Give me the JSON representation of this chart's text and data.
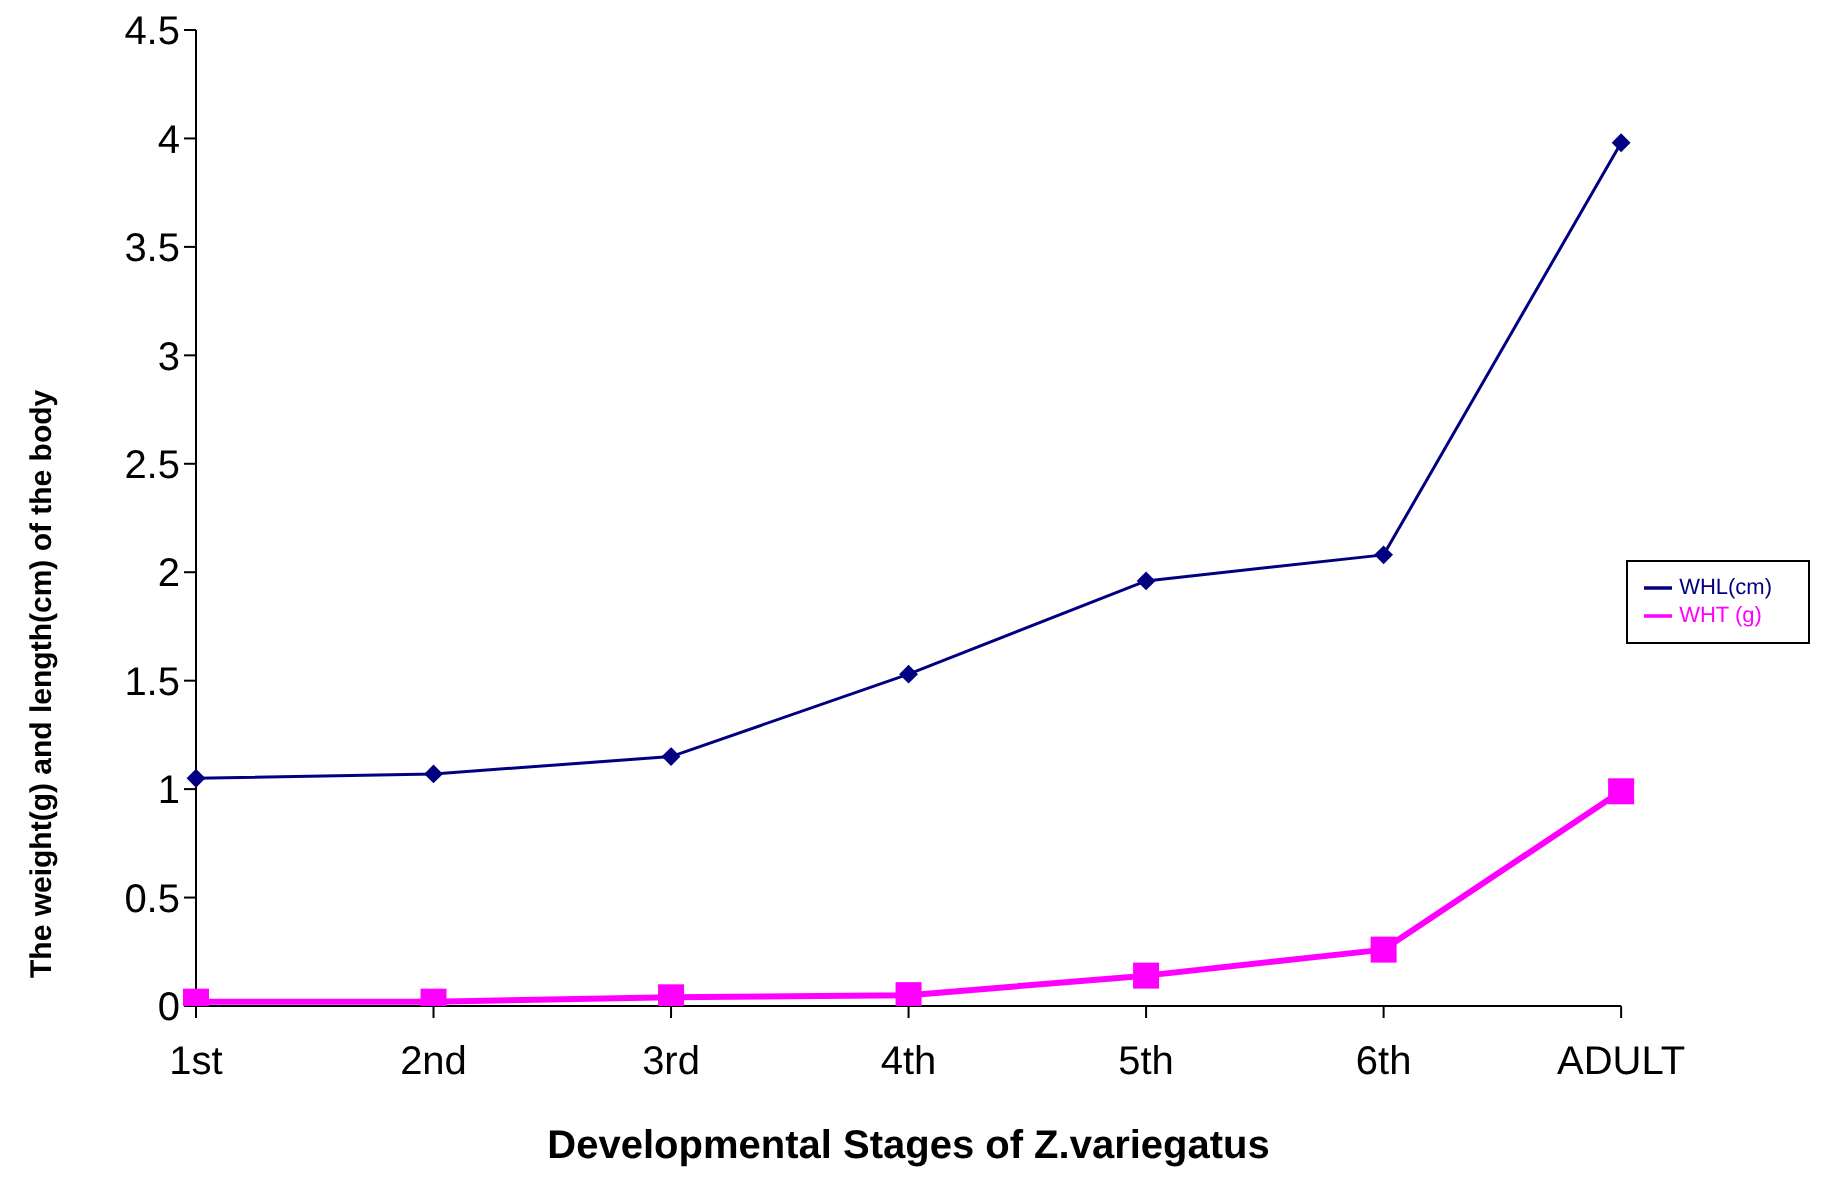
{
  "chart_data": {
    "type": "line",
    "xlabel": "Developmental Stages of Z.variegatus",
    "ylabel": "The weight(g) and length(cm) of the body",
    "categories": [
      "1st",
      "2nd",
      "3rd",
      "4th",
      "5th",
      "6th",
      "ADULT"
    ],
    "series": [
      {
        "name": "WHL(cm)",
        "color": "#000080",
        "marker": "diamond",
        "values": [
          1.05,
          1.07,
          1.15,
          1.53,
          1.96,
          2.08,
          3.98
        ]
      },
      {
        "name": "WHT (g)",
        "color": "#ff00ff",
        "marker": "square",
        "values": [
          0.02,
          0.02,
          0.04,
          0.05,
          0.14,
          0.26,
          0.99
        ]
      }
    ],
    "ylim": [
      0,
      4.5
    ],
    "yticks": [
      0,
      0.5,
      1,
      1.5,
      2,
      2.5,
      3,
      3.5,
      4,
      4.5
    ],
    "grid": false,
    "legend": "right"
  }
}
